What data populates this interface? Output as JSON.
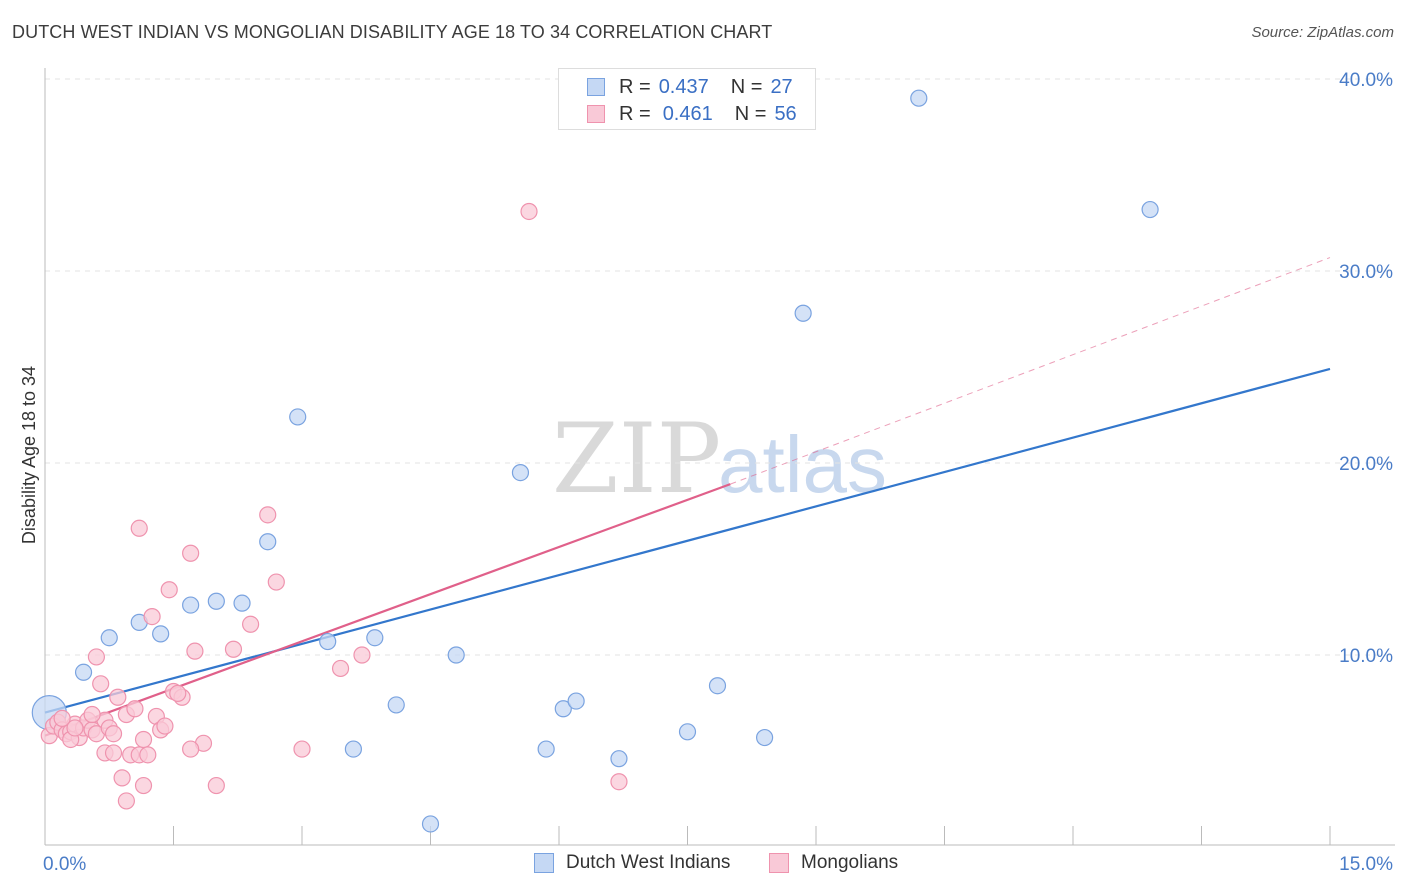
{
  "title": "DUTCH WEST INDIAN VS MONGOLIAN DISABILITY AGE 18 TO 34 CORRELATION CHART",
  "source": "Source: ZipAtlas.com",
  "legend": {
    "rows": [
      {
        "r_label": "R =",
        "r_value": "0.437",
        "n_label": "N =",
        "n_value": "27"
      },
      {
        "r_label": "R =",
        "r_value": "0.461",
        "n_label": "N =",
        "n_value": "56"
      }
    ]
  },
  "bottom_legend": [
    "Dutch West Indians",
    "Mongolians"
  ],
  "watermark": {
    "zip": "ZIP",
    "atlas": "atlas"
  },
  "colors": {
    "blue_fill": "#c5d8f4",
    "blue_stroke": "#7aa3e0",
    "blue_line": "#3377cc",
    "pink_fill": "#f9c9d7",
    "pink_stroke": "#ef93ae",
    "pink_line": "#e0608a",
    "grid": "#e3e3e3",
    "tick_text": "#4a7cc7"
  },
  "chart_data": {
    "type": "scatter",
    "title": "DUTCH WEST INDIAN VS MONGOLIAN DISABILITY AGE 18 TO 34 CORRELATION CHART",
    "xlabel": "",
    "ylabel": "Disability Age 18 to 34",
    "xlim": [
      0,
      15
    ],
    "ylim": [
      0,
      42
    ],
    "x_tick_labels": [
      "0.0%",
      "15.0%"
    ],
    "y_ticks": [
      10,
      20,
      30,
      40
    ],
    "y_tick_labels": [
      "10.0%",
      "20.0%",
      "30.0%",
      "40.0%"
    ],
    "grid": true,
    "legend_position": "top-center",
    "series": [
      {
        "name": "Dutch West Indians",
        "color": "#c5d8f4",
        "points": [
          [
            0.05,
            7.0
          ],
          [
            0.45,
            9.1
          ],
          [
            0.75,
            10.9
          ],
          [
            1.1,
            11.7
          ],
          [
            1.35,
            11.1
          ],
          [
            1.7,
            12.6
          ],
          [
            2.0,
            12.8
          ],
          [
            2.3,
            12.7
          ],
          [
            2.6,
            15.9
          ],
          [
            2.95,
            22.4
          ],
          [
            3.3,
            10.7
          ],
          [
            3.6,
            5.1
          ],
          [
            3.85,
            10.9
          ],
          [
            4.1,
            7.4
          ],
          [
            4.5,
            1.2
          ],
          [
            4.8,
            10.0
          ],
          [
            5.55,
            19.5
          ],
          [
            5.85,
            5.1
          ],
          [
            6.05,
            7.2
          ],
          [
            6.2,
            7.6
          ],
          [
            6.7,
            4.6
          ],
          [
            7.5,
            6.0
          ],
          [
            7.85,
            8.4
          ],
          [
            8.4,
            5.7
          ],
          [
            8.85,
            27.8
          ],
          [
            10.2,
            39.0
          ],
          [
            12.9,
            33.2
          ]
        ],
        "trend": {
          "x": [
            0,
            15
          ],
          "y": [
            7.0,
            24.9
          ]
        }
      },
      {
        "name": "Mongolians",
        "color": "#f9c9d7",
        "points": [
          [
            0.05,
            5.8
          ],
          [
            0.1,
            6.3
          ],
          [
            0.15,
            6.5
          ],
          [
            0.2,
            6.1
          ],
          [
            0.25,
            5.9
          ],
          [
            0.3,
            6.0
          ],
          [
            0.35,
            6.4
          ],
          [
            0.4,
            5.7
          ],
          [
            0.45,
            6.2
          ],
          [
            0.5,
            6.6
          ],
          [
            0.55,
            6.1
          ],
          [
            0.6,
            5.9
          ],
          [
            0.65,
            8.5
          ],
          [
            0.7,
            6.6
          ],
          [
            0.75,
            6.2
          ],
          [
            0.8,
            5.9
          ],
          [
            0.85,
            7.8
          ],
          [
            0.9,
            3.6
          ],
          [
            0.95,
            6.9
          ],
          [
            1.0,
            4.8
          ],
          [
            1.05,
            7.2
          ],
          [
            1.1,
            4.8
          ],
          [
            1.15,
            5.6
          ],
          [
            1.2,
            4.8
          ],
          [
            1.3,
            6.8
          ],
          [
            1.35,
            6.1
          ],
          [
            1.4,
            6.3
          ],
          [
            1.45,
            13.4
          ],
          [
            1.5,
            8.1
          ],
          [
            1.6,
            7.8
          ],
          [
            1.7,
            15.3
          ],
          [
            1.75,
            10.2
          ],
          [
            1.85,
            5.4
          ],
          [
            2.0,
            3.2
          ],
          [
            2.2,
            10.3
          ],
          [
            2.4,
            11.6
          ],
          [
            2.6,
            17.3
          ],
          [
            2.7,
            13.8
          ],
          [
            3.0,
            5.1
          ],
          [
            3.45,
            9.3
          ],
          [
            3.7,
            10.0
          ],
          [
            5.65,
            33.1
          ],
          [
            6.7,
            3.4
          ],
          [
            1.1,
            16.6
          ],
          [
            0.6,
            9.9
          ],
          [
            1.25,
            12.0
          ],
          [
            0.3,
            5.6
          ],
          [
            0.7,
            4.9
          ],
          [
            0.95,
            2.4
          ],
          [
            1.15,
            3.2
          ],
          [
            1.7,
            5.1
          ],
          [
            0.55,
            6.9
          ],
          [
            0.35,
            6.2
          ],
          [
            0.8,
            4.9
          ],
          [
            1.55,
            8.0
          ],
          [
            0.2,
            6.7
          ]
        ],
        "trend": {
          "x": [
            0,
            8
          ],
          "y": [
            5.8,
            18.9
          ]
        },
        "trend_dashed": {
          "x": [
            8,
            15
          ],
          "y": [
            18.9,
            30.7
          ]
        }
      }
    ]
  }
}
